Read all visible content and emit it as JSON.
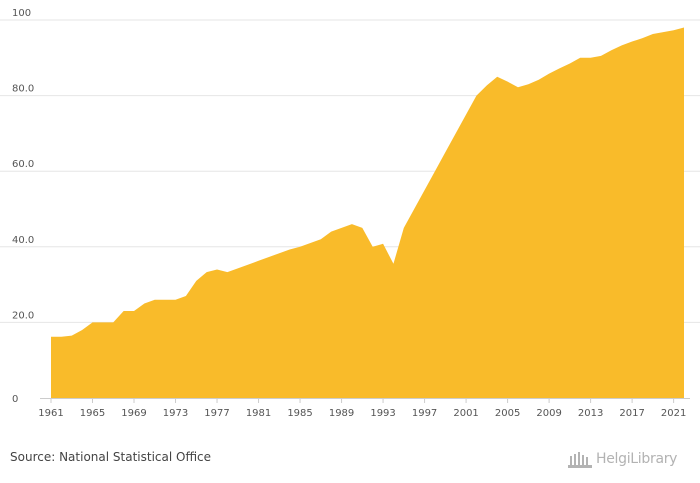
{
  "colors": {
    "area_fill": "#F9BB2A",
    "grid": "#e6e6e6",
    "axis": "#cccccc",
    "text": "#555555"
  },
  "source": "Source: National Statistical Office",
  "logo": {
    "text": "HelgiLibrary",
    "icon": "library-building-icon"
  },
  "chart_data": {
    "type": "area",
    "title": "",
    "xlabel": "",
    "ylabel": "",
    "ylim": [
      0,
      100
    ],
    "xlim": [
      1961,
      2022
    ],
    "y_ticks": [
      0,
      20,
      40,
      60,
      80,
      100
    ],
    "y_tick_labels": [
      "0",
      "20.0",
      "40.0",
      "60.0",
      "80.0",
      "100"
    ],
    "x_tick_labels": [
      "1961",
      "1965",
      "1969",
      "1973",
      "1977",
      "1981",
      "1985",
      "1989",
      "1993",
      "1997",
      "2001",
      "2005",
      "2009",
      "2013",
      "2017",
      "2021"
    ],
    "grid": true,
    "series": [
      {
        "x": [
          1961,
          1962,
          1963,
          1964,
          1965,
          1966,
          1967,
          1968,
          1969,
          1970,
          1971,
          1972,
          1973,
          1974,
          1975,
          1976,
          1977,
          1978,
          1979,
          1980,
          1981,
          1982,
          1983,
          1984,
          1985,
          1986,
          1987,
          1988,
          1989,
          1990,
          1991,
          1992,
          1993,
          1994,
          1995,
          1996,
          1997,
          1998,
          1999,
          2000,
          2001,
          2002,
          2003,
          2004,
          2005,
          2006,
          2007,
          2008,
          2009,
          2010,
          2011,
          2012,
          2013,
          2014,
          2015,
          2016,
          2017,
          2018,
          2019,
          2020,
          2021,
          2022
        ],
        "values": [
          16.2,
          16.2,
          16.5,
          18.0,
          20.0,
          20.0,
          20.0,
          23.0,
          23.0,
          25.0,
          26.0,
          26.0,
          26.0,
          27.0,
          31.0,
          33.3,
          34.0,
          33.3,
          34.3,
          35.3,
          36.3,
          37.3,
          38.3,
          39.3,
          40.0,
          41.0,
          42.0,
          44.0,
          45.0,
          46.0,
          45.0,
          40.0,
          40.8,
          35.5,
          45.0,
          50.0,
          55.0,
          60.0,
          65.0,
          70.0,
          75.0,
          80.0,
          82.7,
          85.0,
          83.7,
          82.2,
          83.0,
          84.2,
          85.8,
          87.2,
          88.5,
          90.0,
          90.0,
          90.5,
          92.0,
          93.3,
          94.3,
          95.2,
          96.3,
          96.8,
          97.3,
          98.0
        ]
      }
    ]
  }
}
